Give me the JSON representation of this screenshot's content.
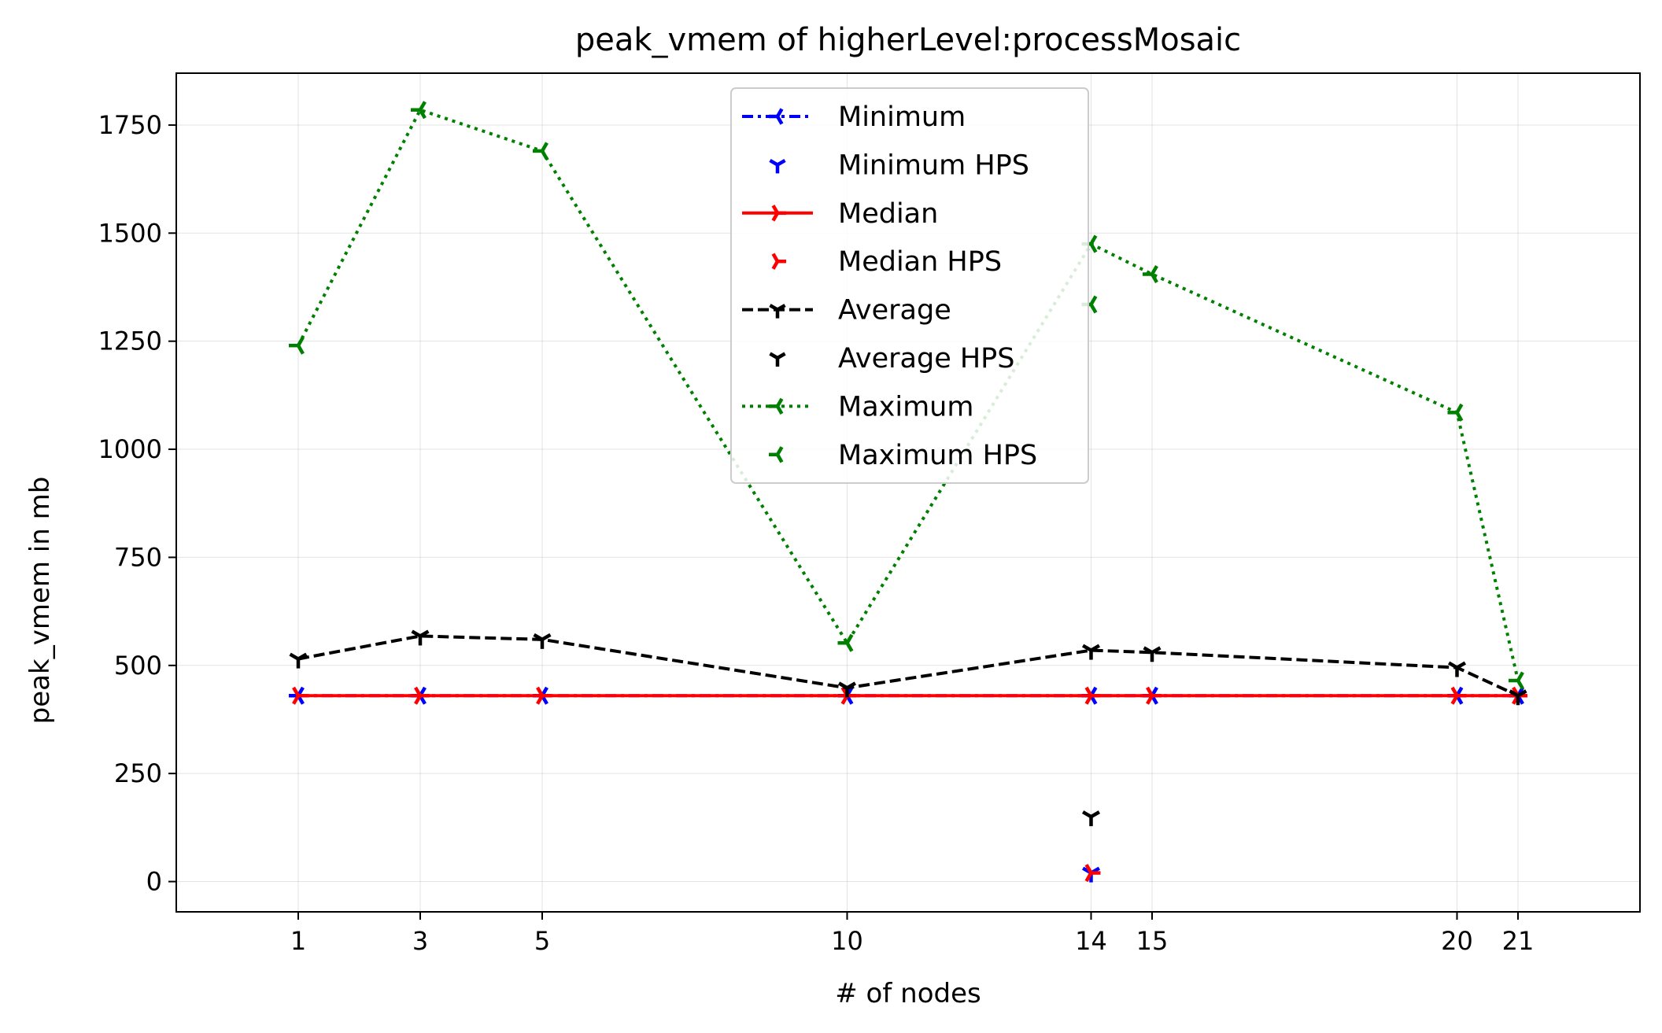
{
  "chart_data": {
    "type": "line",
    "title": "peak_vmem of higherLevel:processMosaic",
    "xlabel": "# of nodes",
    "ylabel": "peak_vmem in mb",
    "x": [
      1,
      3,
      5,
      10,
      14,
      15,
      20,
      21
    ],
    "x_ticks": [
      "1",
      "3",
      "5",
      "10",
      "14",
      "15",
      "20",
      "21"
    ],
    "y_ticks": [
      "0",
      "250",
      "500",
      "750",
      "1000",
      "1250",
      "1500",
      "1750"
    ],
    "xlim": [
      -1.0,
      23.0
    ],
    "ylim": [
      -70,
      1870
    ],
    "grid": true,
    "legend_position": "top-center",
    "series": [
      {
        "name": "Minimum",
        "kind": "line",
        "color": "#0000ff",
        "dash": "dashdot",
        "marker": "tri-left",
        "x": [
          1,
          3,
          5,
          10,
          14,
          15,
          20,
          21
        ],
        "values": [
          430,
          430,
          430,
          430,
          430,
          430,
          430,
          430
        ]
      },
      {
        "name": "Minimum HPS",
        "kind": "points",
        "color": "#0000ff",
        "marker": "tri-down",
        "x": [
          14
        ],
        "values": [
          20
        ]
      },
      {
        "name": "Median",
        "kind": "line",
        "color": "#ff0000",
        "dash": "solid",
        "marker": "tri-right",
        "x": [
          1,
          3,
          5,
          10,
          14,
          15,
          20,
          21
        ],
        "values": [
          430,
          430,
          430,
          430,
          430,
          430,
          430,
          430
        ]
      },
      {
        "name": "Median HPS",
        "kind": "points",
        "color": "#ff0000",
        "marker": "tri-right",
        "x": [
          14
        ],
        "values": [
          20
        ]
      },
      {
        "name": "Average",
        "kind": "line",
        "color": "#000000",
        "dash": "dashed",
        "marker": "tri-down",
        "x": [
          1,
          3,
          5,
          10,
          14,
          15,
          20,
          21
        ],
        "values": [
          515,
          568,
          560,
          448,
          535,
          530,
          495,
          430
        ]
      },
      {
        "name": "Average HPS",
        "kind": "points",
        "color": "#000000",
        "marker": "tri-down",
        "x": [
          14
        ],
        "values": [
          150
        ]
      },
      {
        "name": "Maximum",
        "kind": "line",
        "color": "#008000",
        "dash": "dotted",
        "marker": "tri-left",
        "x": [
          1,
          3,
          5,
          10,
          14,
          15,
          20,
          21
        ],
        "values": [
          1240,
          1785,
          1690,
          552,
          1475,
          1405,
          1085,
          465
        ]
      },
      {
        "name": "Maximum HPS",
        "kind": "points",
        "color": "#008000",
        "marker": "tri-left",
        "x": [
          14
        ],
        "values": [
          1335
        ]
      }
    ]
  }
}
